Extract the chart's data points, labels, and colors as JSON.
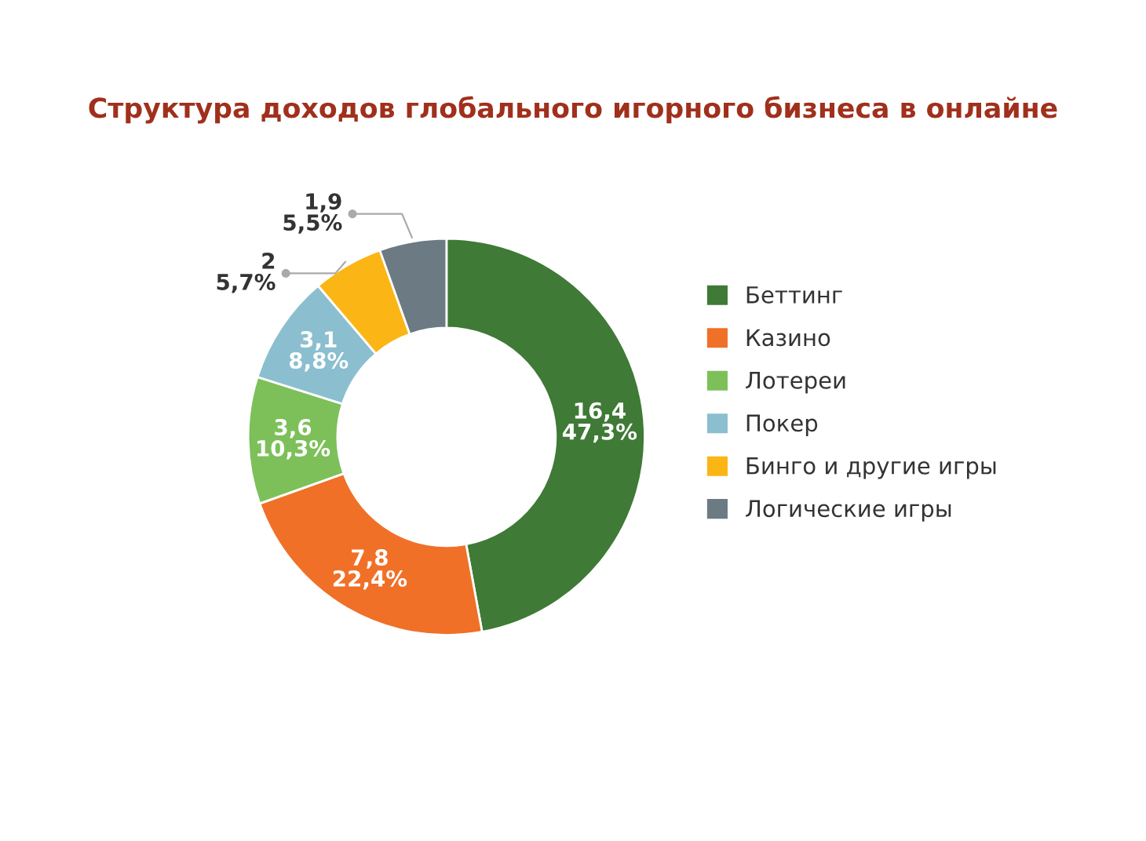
{
  "chart_data": {
    "type": "donut",
    "title": "Структура доходов глобального игорного бизнеса в онлайне",
    "categories": [
      "Беттинг",
      "Казино",
      "Лотереи",
      "Покер",
      "Бинго и другие игры",
      "Логические игры"
    ],
    "values": [
      16.4,
      7.8,
      3.6,
      3.1,
      2,
      1.9
    ],
    "value_labels": [
      "16,4\n47,3%",
      "7,8\n22,4%",
      "3,6\n10,3%",
      "3,1\n8,8%",
      "2\n5,7%",
      "1,9\n5,5%"
    ],
    "colors": [
      "#3f7a36",
      "#f07028",
      "#7dc05a",
      "#8bbfcf",
      "#fbb515",
      "#6c7a84"
    ],
    "legend": "right"
  }
}
